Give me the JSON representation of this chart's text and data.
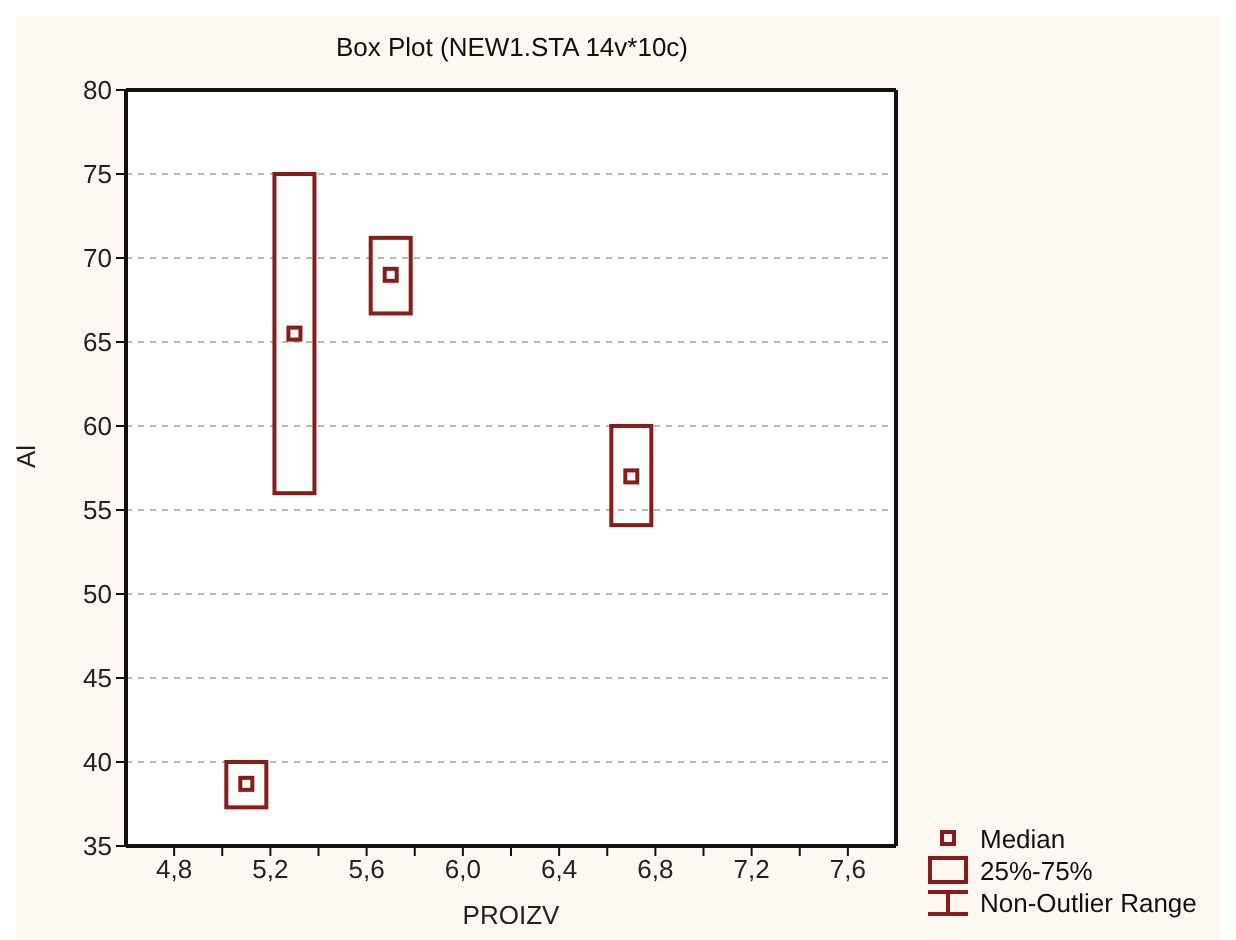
{
  "chart_data": {
    "type": "box",
    "title": "Box Plot (NEW1.STA 14v*10c)",
    "xlabel": "PROIZV",
    "ylabel": "Al",
    "x": [
      5.1,
      5.3,
      5.7,
      6.7
    ],
    "series": [
      {
        "color": "#8b1a1a",
        "boxes": [
          {
            "low": 37.3,
            "q1": 37.3,
            "median": 38.7,
            "q3": 40,
            "high": 40
          },
          {
            "low": 56,
            "q1": 56,
            "median": 65.5,
            "q3": 75,
            "high": 75
          },
          {
            "low": 66.7,
            "q1": 66.7,
            "median": 69,
            "q3": 71.2,
            "high": 71.2
          },
          {
            "low": 54.1,
            "q1": 54.1,
            "median": 57,
            "q3": 60,
            "high": 60
          }
        ]
      }
    ],
    "xlim": [
      4.6,
      7.8
    ],
    "xticks": [
      {
        "value": 4.8,
        "label": "4,8"
      },
      {
        "value": 5.0,
        "label": null
      },
      {
        "value": 5.2,
        "label": "5,2"
      },
      {
        "value": 5.4,
        "label": null
      },
      {
        "value": 5.6,
        "label": "5,6"
      },
      {
        "value": 5.8,
        "label": null
      },
      {
        "value": 6.0,
        "label": "6,0"
      },
      {
        "value": 6.2,
        "label": null
      },
      {
        "value": 6.4,
        "label": "6,4"
      },
      {
        "value": 6.6,
        "label": null
      },
      {
        "value": 6.8,
        "label": "6,8"
      },
      {
        "value": 7.0,
        "label": null
      },
      {
        "value": 7.2,
        "label": "7,2"
      },
      {
        "value": 7.4,
        "label": null
      },
      {
        "value": 7.6,
        "label": "7,6"
      }
    ],
    "ylim": [
      35,
      80
    ],
    "yticks": [
      35,
      40,
      45,
      50,
      55,
      60,
      65,
      70,
      75,
      80
    ],
    "grid": "y",
    "annotations": [
      "Median",
      "25%-75%",
      "Non-Outlier Range"
    ]
  }
}
